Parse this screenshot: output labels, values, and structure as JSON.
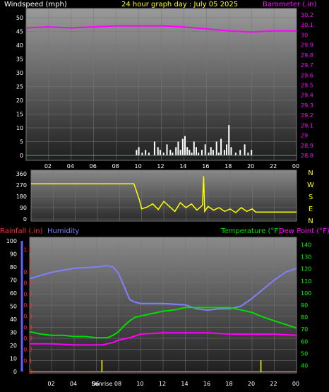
{
  "colors": {
    "windspeed": "#ffffff",
    "barometer": "#ff00ff",
    "direction": "#ffff00",
    "rain": "#ff3030",
    "humidity": "#8080ff",
    "temperature": "#00dd00",
    "dewpoint": "#ff00ff"
  },
  "header": {
    "windspeed_label": "Windspeed (mph)",
    "title": "24 hour graph day : July 05 2025",
    "barometer_label": "Barometer (.in)"
  },
  "panel3_header": {
    "rainfall_label": "Rainfall (.in)",
    "humidity_label": "Humidity",
    "temperature_label": "Temperature (°F)",
    "dewpoint_label": "Dew Point (°F)"
  },
  "compass_letters": [
    "N",
    "W",
    "S",
    "E",
    "N"
  ],
  "x_ticks": [
    "02",
    "04",
    "06",
    "08",
    "10",
    "12",
    "14",
    "16",
    "18",
    "20",
    "22",
    "00"
  ],
  "sunrise_label": "Sunrise",
  "chart_data": [
    {
      "type": "line",
      "panel": "wind_barometer",
      "title": "24 hour graph day : July 05 2025",
      "x_range_hours": [
        0,
        24
      ],
      "left_axis": {
        "label": "Windspeed (mph)",
        "range": [
          0,
          50
        ],
        "ticks": [
          "0",
          "5",
          "10",
          "15",
          "20",
          "25",
          "30",
          "35",
          "40",
          "45",
          "50"
        ]
      },
      "right_axis": {
        "label": "Barometer (.in)",
        "range": [
          28.8,
          30.2
        ],
        "ticks": [
          "28.8",
          "28.9",
          "29",
          "29.1",
          "29.2",
          "29.3",
          "29.4",
          "29.5",
          "29.6",
          "29.7",
          "29.8",
          "29.9",
          "30",
          "30.1",
          "30.2"
        ]
      },
      "barometer": {
        "x": [
          0,
          2,
          4,
          6,
          8,
          10,
          12,
          14,
          16,
          18,
          20,
          22,
          24
        ],
        "y": [
          30.07,
          30.08,
          30.07,
          30.08,
          30.09,
          30.09,
          30.09,
          30.08,
          30.06,
          30.04,
          30.03,
          30.04,
          30.04
        ]
      },
      "wind_gust_bars": {
        "x": [
          9.8,
          10.0,
          10.3,
          10.6,
          10.9,
          11.4,
          11.7,
          11.9,
          12.2,
          12.5,
          12.8,
          13.0,
          13.3,
          13.5,
          13.7,
          13.9,
          14.1,
          14.3,
          14.5,
          14.7,
          14.9,
          15.1,
          15.3,
          15.6,
          15.9,
          16.2,
          16.4,
          16.6,
          16.9,
          17.1,
          17.3,
          17.6,
          17.8,
          18.0,
          18.2,
          18.6,
          19.0,
          19.4,
          19.7,
          20.0
        ],
        "y": [
          2,
          3,
          1,
          2,
          1,
          5,
          3,
          2,
          1,
          4,
          2,
          1,
          3,
          5,
          2,
          6,
          7,
          3,
          2,
          1,
          5,
          3,
          1,
          2,
          4,
          1,
          3,
          2,
          5,
          1,
          6,
          2,
          4,
          11,
          3,
          1,
          2,
          4,
          1,
          2
        ]
      }
    },
    {
      "type": "line",
      "panel": "wind_direction",
      "x_range_hours": [
        0,
        24
      ],
      "left_axis": {
        "range": [
          0,
          360
        ],
        "ticks": [
          "0",
          "90",
          "180",
          "270",
          "360"
        ]
      },
      "direction": {
        "x": [
          0,
          9.3,
          9.5,
          9.8,
          10.0,
          10.5,
          11.0,
          11.5,
          12.0,
          12.5,
          13.0,
          13.5,
          14.0,
          14.5,
          15.0,
          15.5,
          15.6,
          15.7,
          16.0,
          16.5,
          17.0,
          17.5,
          18.0,
          18.5,
          19.0,
          19.5,
          20.0,
          20.3,
          24
        ],
        "y": [
          280,
          280,
          230,
          150,
          80,
          95,
          120,
          75,
          140,
          100,
          60,
          130,
          90,
          120,
          70,
          110,
          340,
          60,
          100,
          70,
          90,
          60,
          80,
          50,
          90,
          60,
          80,
          55,
          55
        ]
      }
    },
    {
      "type": "line",
      "panel": "temperature_humidity",
      "x_range_hours": [
        0,
        24
      ],
      "axes": {
        "humidity": {
          "range": [
            0,
            100
          ],
          "ticks": [
            "0",
            "10",
            "20",
            "30",
            "40",
            "50",
            "60",
            "70",
            "80",
            "90",
            "100"
          ]
        },
        "rainfall": {
          "range": [
            0,
            1.2
          ],
          "ticks": [
            "0",
            "0.1",
            "0.2",
            "0.3",
            "0.4",
            "0.5",
            "0.6",
            "0.7",
            "0.8",
            "0.9",
            "1",
            "1.1"
          ]
        },
        "temperature": {
          "range": [
            35,
            145
          ],
          "ticks": [
            "40",
            "50",
            "60",
            "70",
            "80",
            "90",
            "100",
            "110",
            "120",
            "130",
            "140"
          ]
        }
      },
      "humidity": {
        "x": [
          0,
          2,
          4,
          6,
          7,
          7.5,
          8,
          8.5,
          9,
          9.5,
          10,
          12,
          14,
          15,
          16,
          17,
          18,
          19,
          20,
          21,
          22,
          23,
          24
        ],
        "y": [
          71,
          76,
          79,
          80,
          81,
          80,
          75,
          65,
          55,
          53,
          52,
          52,
          51,
          48,
          47,
          48,
          48,
          50,
          56,
          63,
          70,
          76,
          79
        ]
      },
      "temperature": {
        "x": [
          0,
          1,
          2,
          3,
          4,
          5,
          6,
          6.5,
          7,
          7.5,
          8,
          8.5,
          9,
          9.5,
          10,
          11,
          12,
          13,
          14,
          15,
          16,
          17,
          18,
          19,
          20,
          21,
          22,
          23,
          24
        ],
        "y": [
          68,
          66,
          65,
          65,
          64,
          64,
          63,
          63,
          63,
          65,
          68,
          73,
          77,
          80,
          81,
          83,
          85,
          86,
          88,
          88,
          88,
          88,
          88,
          86,
          84,
          80,
          77,
          74,
          71
        ]
      },
      "dewpoint": {
        "x": [
          0,
          2,
          4,
          6,
          6.5,
          7,
          7.5,
          8,
          9,
          10,
          12,
          14,
          16,
          18,
          20,
          22,
          24
        ],
        "y": [
          58,
          58,
          57,
          57,
          57,
          58,
          59,
          61,
          63,
          66,
          67,
          67,
          67,
          66,
          66,
          66,
          65
        ]
      },
      "rainfall": {
        "x": [
          0,
          24
        ],
        "y": [
          0,
          0
        ]
      },
      "sunrise_hour": 6.5,
      "sunset_hour": 20.8
    }
  ]
}
